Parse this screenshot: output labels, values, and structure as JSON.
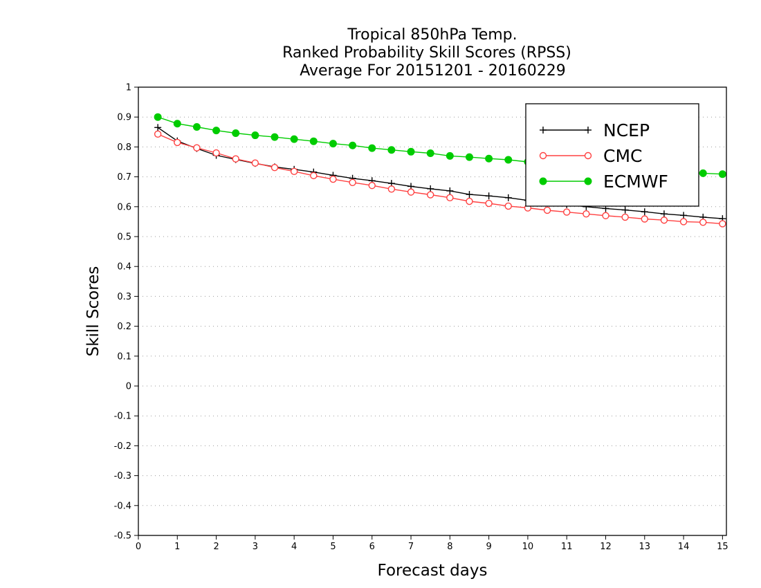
{
  "chart_data": {
    "type": "line",
    "title_lines": [
      "Tropical 850hPa Temp.",
      "Ranked Probability Skill Scores (RPSS)",
      " Average For 20151201 - 20160229"
    ],
    "xlabel": "Forecast days",
    "ylabel": "Skill Scores",
    "xlim": [
      0,
      15.1
    ],
    "ylim": [
      -0.5,
      1
    ],
    "x_ticks": [
      "0",
      "1",
      "2",
      "3",
      "4",
      "5",
      "6",
      "7",
      "8",
      "9",
      "10",
      "11",
      "12",
      "13",
      "14",
      "15"
    ],
    "y_ticks": [
      "1",
      "0.9",
      "0.8",
      "0.7",
      "0.6",
      "0.5",
      "0.4",
      "0.3",
      "0.2",
      "0.1",
      "0",
      "-0.1",
      "-0.2",
      "-0.3",
      "-0.4",
      "-0.5"
    ],
    "grid": true,
    "legend_position": "top-right",
    "x": [
      0.5,
      1,
      1.5,
      2,
      2.5,
      3,
      3.5,
      4,
      4.5,
      5,
      5.5,
      6,
      6.5,
      7,
      7.5,
      8,
      8.5,
      9,
      9.5,
      10,
      10.5,
      11,
      11.5,
      12,
      12.5,
      13,
      13.5,
      14,
      14.5,
      15
    ],
    "series": [
      {
        "name": "NCEP",
        "color": "#000000",
        "marker": "plus",
        "values": [
          0.865,
          0.82,
          0.795,
          0.772,
          0.758,
          0.745,
          0.733,
          0.725,
          0.716,
          0.705,
          0.695,
          0.687,
          0.678,
          0.668,
          0.66,
          0.653,
          0.641,
          0.636,
          0.63,
          0.621,
          0.614,
          0.607,
          0.6,
          0.594,
          0.589,
          0.583,
          0.576,
          0.571,
          0.565,
          0.56
        ]
      },
      {
        "name": "CMC",
        "color": "#ff4040",
        "marker": "open-circle",
        "values": [
          0.843,
          0.815,
          0.797,
          0.78,
          0.76,
          0.746,
          0.731,
          0.718,
          0.704,
          0.692,
          0.681,
          0.671,
          0.659,
          0.649,
          0.64,
          0.63,
          0.618,
          0.611,
          0.602,
          0.596,
          0.588,
          0.582,
          0.576,
          0.57,
          0.565,
          0.559,
          0.555,
          0.55,
          0.548,
          0.543
        ]
      },
      {
        "name": "ECMWF",
        "color": "#00cc00",
        "marker": "filled-circle",
        "values": [
          0.9,
          0.878,
          0.867,
          0.855,
          0.846,
          0.839,
          0.833,
          0.826,
          0.819,
          0.811,
          0.805,
          0.796,
          0.79,
          0.784,
          0.779,
          0.77,
          0.766,
          0.761,
          0.757,
          0.75,
          0.746,
          0.741,
          0.736,
          0.732,
          0.728,
          0.723,
          0.718,
          0.715,
          0.712,
          0.709
        ]
      }
    ]
  }
}
